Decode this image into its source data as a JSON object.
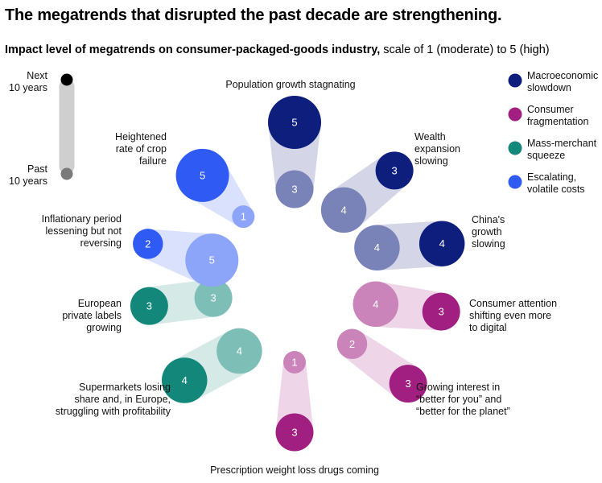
{
  "title": "The megatrends that disrupted the past decade are strengthening.",
  "subtitle_bold": "Impact level of megatrends on consumer-packaged-goods industry,",
  "subtitle_rest": " scale of 1 (moderate) to 5 (high)",
  "timeline": {
    "next_label": [
      "Next",
      "10 years"
    ],
    "past_label": [
      "Past",
      "10 years"
    ]
  },
  "legend": [
    {
      "name": "macroeconomic",
      "lines": [
        "Macroeconomic",
        "slowdown"
      ],
      "color": "#0d1e7c"
    },
    {
      "name": "consumer-fragmentation",
      "lines": [
        "Consumer",
        "fragmentation"
      ],
      "color": "#a01f80"
    },
    {
      "name": "mass-merchant",
      "lines": [
        "Mass-merchant",
        "squeeze"
      ],
      "color": "#13887a"
    },
    {
      "name": "escalating-costs",
      "lines": [
        "Escalating,",
        "volatile costs"
      ],
      "color": "#2f5bf4"
    }
  ],
  "chart_data": {
    "type": "bubble-pairs",
    "title": "Impact level of megatrends on consumer-packaged-goods industry",
    "scale": "1 (moderate) to 5 (high)",
    "series": [
      {
        "label": [
          "Population growth stagnating"
        ],
        "category": "macroeconomic",
        "past": 3,
        "next": 5
      },
      {
        "label": [
          "Wealth",
          "expansion",
          "slowing"
        ],
        "category": "macroeconomic",
        "past": 4,
        "next": 3
      },
      {
        "label": [
          "China's",
          "growth",
          "slowing"
        ],
        "category": "macroeconomic",
        "past": 4,
        "next": 4
      },
      {
        "label": [
          "Consumer attention",
          "shifting even more",
          "to digital"
        ],
        "category": "consumer-fragmentation",
        "past": 4,
        "next": 3
      },
      {
        "label": [
          "Growing interest in",
          "“better for you” and",
          "“better for the planet”"
        ],
        "category": "consumer-fragmentation",
        "past": 2,
        "next": 3
      },
      {
        "label": [
          "Prescription weight loss drugs coming"
        ],
        "category": "consumer-fragmentation",
        "past": 1,
        "next": 3
      },
      {
        "label": [
          "Supermarkets losing",
          "share and, in Europe,",
          "struggling with profitability"
        ],
        "category": "mass-merchant",
        "past": 4,
        "next": 4
      },
      {
        "label": [
          "European",
          "private labels",
          "growing"
        ],
        "category": "mass-merchant",
        "past": 3,
        "next": 3
      },
      {
        "label": [
          "Inflationary period",
          "lessening but not",
          "reversing"
        ],
        "category": "escalating-costs",
        "past": 5,
        "next": 2
      },
      {
        "label": [
          "Heightened",
          "rate of crop",
          "failure"
        ],
        "category": "escalating-costs",
        "past": 1,
        "next": 5
      }
    ]
  }
}
